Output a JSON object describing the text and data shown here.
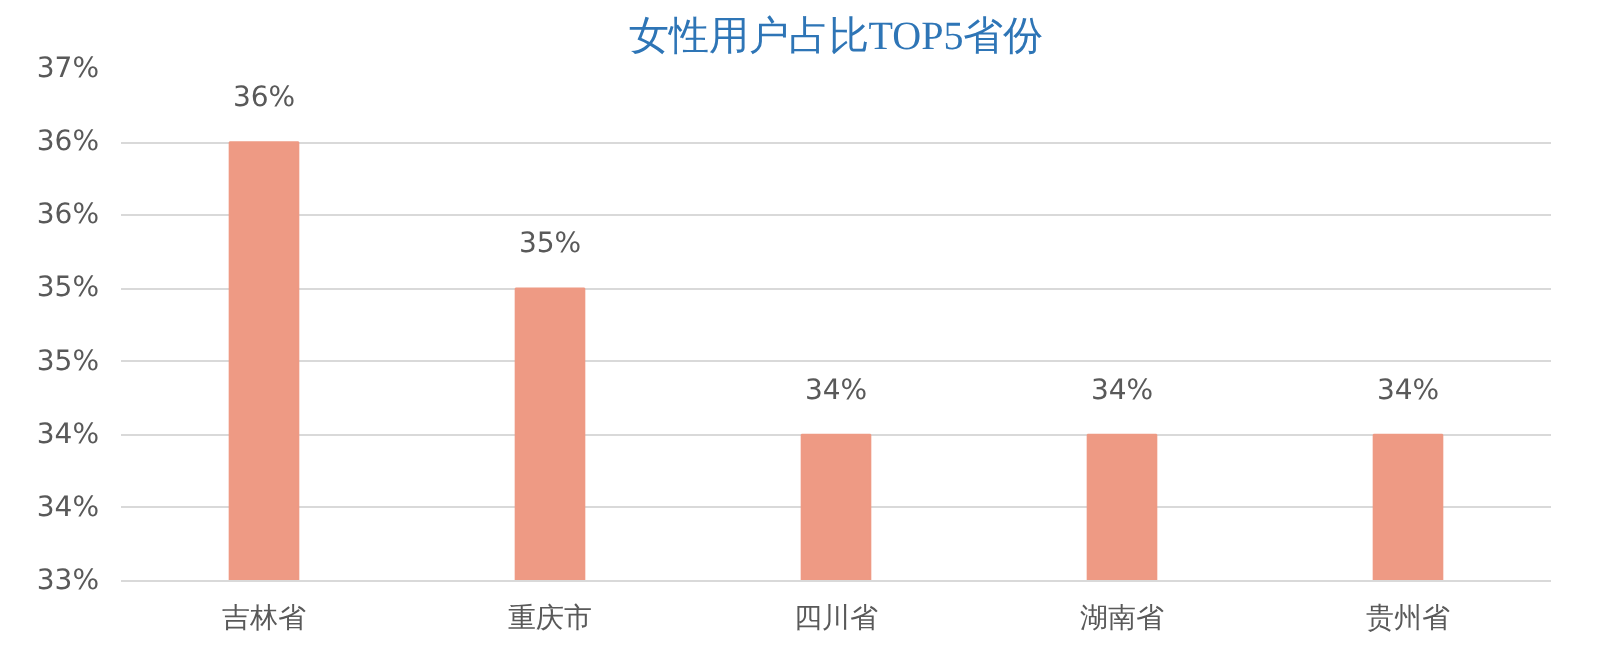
{
  "chart_data": {
    "type": "bar",
    "title": "女性用户占比TOP5省份",
    "categories": [
      "吉林省",
      "重庆市",
      "四川省",
      "湖南省",
      "贵州省"
    ],
    "values": [
      36.0,
      35.0,
      34.0,
      34.0,
      34.0
    ],
    "value_labels": [
      "36%",
      "35%",
      "34%",
      "34%",
      "34%"
    ],
    "color": "#ee9a84",
    "ylim": [
      33,
      36.5
    ],
    "yticks": [
      {
        "value": 33,
        "label": "33%"
      },
      {
        "value": 33.5,
        "label": "34%"
      },
      {
        "value": 34,
        "label": "34%"
      },
      {
        "value": 34.5,
        "label": "35%"
      },
      {
        "value": 35,
        "label": "35%"
      },
      {
        "value": 35.5,
        "label": "36%"
      },
      {
        "value": 36,
        "label": "36%"
      },
      {
        "value": 36.5,
        "label": "37%"
      }
    ],
    "grid": "y"
  }
}
